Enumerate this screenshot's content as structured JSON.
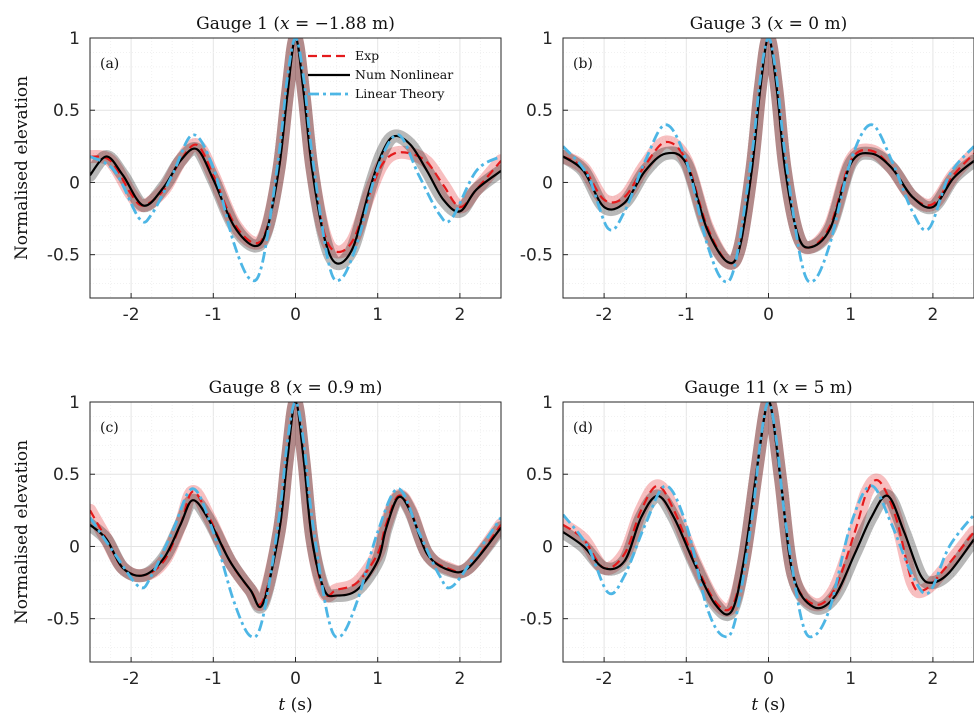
{
  "chart_data": [
    {
      "panel": "(a)",
      "type": "line",
      "title": "Gauge 1 (x = −1.88 m)",
      "title_parts": {
        "pre": "Gauge 1 (",
        "var": "x",
        "post": " = −1.88 m)"
      },
      "xlabel": "",
      "ylabel": "Normalised elevation",
      "xlim": [
        -2.5,
        2.5
      ],
      "ylim": [
        -0.8,
        1
      ],
      "xticks": [
        "-2",
        "-1",
        "0",
        "1",
        "2"
      ],
      "yticks": [
        "-0.5",
        "0",
        "0.5",
        "1"
      ],
      "grid": true,
      "legend": "top-center",
      "series": [
        {
          "name": "Exp",
          "color": "#e41a1c",
          "style": "dashed",
          "band": true,
          "x": [
            -2.5,
            -2.25,
            -2.0,
            -1.85,
            -1.6,
            -1.4,
            -1.2,
            -1.0,
            -0.75,
            -0.5,
            -0.35,
            -0.2,
            -0.1,
            0.0,
            0.1,
            0.2,
            0.35,
            0.5,
            0.7,
            0.9,
            1.05,
            1.2,
            1.4,
            1.6,
            1.8,
            2.0,
            2.2,
            2.5
          ],
          "y": [
            0.18,
            0.15,
            -0.08,
            -0.16,
            -0.05,
            0.15,
            0.26,
            0.05,
            -0.28,
            -0.42,
            -0.32,
            0.1,
            0.6,
            1.0,
            0.62,
            0.1,
            -0.35,
            -0.48,
            -0.4,
            -0.08,
            0.12,
            0.2,
            0.2,
            0.14,
            -0.02,
            -0.17,
            -0.05,
            0.15
          ]
        },
        {
          "name": "Num Nonlinear",
          "color": "#000000",
          "style": "solid",
          "band": true,
          "x": [
            -2.5,
            -2.3,
            -2.1,
            -1.85,
            -1.6,
            -1.4,
            -1.2,
            -1.0,
            -0.75,
            -0.5,
            -0.35,
            -0.2,
            -0.1,
            0.0,
            0.1,
            0.2,
            0.35,
            0.5,
            0.7,
            0.9,
            1.05,
            1.2,
            1.4,
            1.6,
            1.8,
            2.0,
            2.2,
            2.5
          ],
          "y": [
            0.05,
            0.18,
            0.05,
            -0.16,
            -0.03,
            0.15,
            0.23,
            0.02,
            -0.3,
            -0.44,
            -0.33,
            0.1,
            0.6,
            1.0,
            0.62,
            0.1,
            -0.38,
            -0.56,
            -0.45,
            -0.05,
            0.2,
            0.32,
            0.26,
            0.08,
            -0.12,
            -0.2,
            -0.05,
            0.08
          ]
        },
        {
          "name": "Linear Theory",
          "color": "#4db6e5",
          "style": "dashdot",
          "band": false,
          "x": [
            -2.5,
            -2.2,
            -1.9,
            -1.75,
            -1.5,
            -1.25,
            -1.0,
            -0.75,
            -0.55,
            -0.4,
            -0.2,
            -0.1,
            0.0,
            0.1,
            0.2,
            0.4,
            0.55,
            0.75,
            1.0,
            1.25,
            1.5,
            1.75,
            1.9,
            2.2,
            2.5
          ],
          "y": [
            0.18,
            0.08,
            -0.25,
            -0.22,
            0.05,
            0.33,
            0.1,
            -0.42,
            -0.67,
            -0.55,
            0.2,
            0.72,
            1.0,
            0.72,
            0.2,
            -0.55,
            -0.67,
            -0.42,
            0.1,
            0.33,
            0.05,
            -0.22,
            -0.25,
            0.08,
            0.18
          ]
        }
      ]
    },
    {
      "panel": "(b)",
      "type": "line",
      "title": "Gauge 3 (x = 0 m)",
      "title_parts": {
        "pre": "Gauge 3 (",
        "var": "x",
        "post": " = 0 m)"
      },
      "xlabel": "",
      "ylabel": "",
      "xlim": [
        -2.5,
        2.5
      ],
      "ylim": [
        -0.8,
        1
      ],
      "xticks": [
        "-2",
        "-1",
        "0",
        "1",
        "2"
      ],
      "yticks": [
        "-0.5",
        "0",
        "0.5",
        "1"
      ],
      "grid": true,
      "series": [
        {
          "name": "Exp",
          "color": "#e41a1c",
          "style": "dashed",
          "band": true,
          "x": [
            -2.5,
            -2.25,
            -2.0,
            -1.75,
            -1.5,
            -1.25,
            -1.0,
            -0.75,
            -0.5,
            -0.35,
            -0.2,
            -0.1,
            0.0,
            0.1,
            0.2,
            0.35,
            0.5,
            0.75,
            1.0,
            1.25,
            1.5,
            1.75,
            2.0,
            2.25,
            2.5
          ],
          "y": [
            0.18,
            0.1,
            -0.12,
            -0.1,
            0.12,
            0.28,
            0.15,
            -0.3,
            -0.55,
            -0.45,
            0.1,
            0.65,
            1.0,
            0.65,
            0.1,
            -0.35,
            -0.45,
            -0.3,
            0.15,
            0.22,
            0.1,
            -0.1,
            -0.15,
            0.05,
            0.2
          ]
        },
        {
          "name": "Num Nonlinear",
          "color": "#000000",
          "style": "solid",
          "band": true,
          "x": [
            -2.5,
            -2.25,
            -2.0,
            -1.75,
            -1.5,
            -1.25,
            -1.0,
            -0.75,
            -0.5,
            -0.35,
            -0.2,
            -0.1,
            0.0,
            0.1,
            0.2,
            0.35,
            0.5,
            0.75,
            1.0,
            1.25,
            1.5,
            1.75,
            2.0,
            2.25,
            2.5
          ],
          "y": [
            0.18,
            0.08,
            -0.17,
            -0.14,
            0.08,
            0.2,
            0.13,
            -0.32,
            -0.55,
            -0.45,
            0.1,
            0.65,
            1.0,
            0.65,
            0.1,
            -0.35,
            -0.45,
            -0.32,
            0.13,
            0.2,
            0.1,
            -0.1,
            -0.17,
            0.03,
            0.15
          ]
        },
        {
          "name": "Linear Theory",
          "color": "#4db6e5",
          "style": "dashdot",
          "band": false,
          "x": [
            -2.5,
            -2.2,
            -1.95,
            -1.75,
            -1.5,
            -1.25,
            -1.0,
            -0.75,
            -0.55,
            -0.4,
            -0.2,
            -0.1,
            0.0,
            0.1,
            0.2,
            0.4,
            0.55,
            0.75,
            1.0,
            1.25,
            1.5,
            1.75,
            1.95,
            2.2,
            2.5
          ],
          "y": [
            0.25,
            0.05,
            -0.32,
            -0.2,
            0.15,
            0.4,
            0.15,
            -0.42,
            -0.68,
            -0.55,
            0.2,
            0.72,
            1.0,
            0.72,
            0.2,
            -0.55,
            -0.68,
            -0.42,
            0.15,
            0.4,
            0.15,
            -0.2,
            -0.32,
            0.05,
            0.25
          ]
        }
      ]
    },
    {
      "panel": "(c)",
      "type": "line",
      "title": "Gauge 8 (x = 0.9 m)",
      "title_parts": {
        "pre": "Gauge 8 (",
        "var": "x",
        "post": " = 0.9 m)"
      },
      "xlabel": "t (s)",
      "ylabel": "Normalised elevation",
      "xlim": [
        -2.5,
        2.5
      ],
      "ylim": [
        -0.8,
        1
      ],
      "xticks": [
        "-2",
        "-1",
        "0",
        "1",
        "2"
      ],
      "yticks": [
        "-0.5",
        "0",
        "0.5",
        "1"
      ],
      "grid": true,
      "series": [
        {
          "name": "Exp",
          "color": "#e41a1c",
          "style": "dashed",
          "band": true,
          "x": [
            -2.5,
            -2.3,
            -2.1,
            -1.85,
            -1.6,
            -1.4,
            -1.25,
            -1.05,
            -0.8,
            -0.55,
            -0.4,
            -0.2,
            -0.1,
            0.0,
            0.1,
            0.2,
            0.35,
            0.5,
            0.75,
            1.0,
            1.1,
            1.25,
            1.4,
            1.6,
            1.85,
            2.1,
            2.5
          ],
          "y": [
            0.25,
            0.05,
            -0.15,
            -0.2,
            -0.1,
            0.15,
            0.38,
            0.2,
            -0.1,
            -0.3,
            -0.38,
            0.1,
            0.6,
            1.0,
            0.6,
            0.05,
            -0.32,
            -0.3,
            -0.25,
            -0.05,
            0.15,
            0.35,
            0.25,
            -0.05,
            -0.15,
            -0.15,
            0.15
          ]
        },
        {
          "name": "Num Nonlinear",
          "color": "#000000",
          "style": "solid",
          "band": true,
          "x": [
            -2.5,
            -2.3,
            -2.1,
            -1.85,
            -1.6,
            -1.4,
            -1.25,
            -1.05,
            -0.8,
            -0.55,
            -0.4,
            -0.2,
            -0.1,
            0.0,
            0.1,
            0.2,
            0.35,
            0.5,
            0.75,
            1.0,
            1.1,
            1.25,
            1.4,
            1.6,
            1.85,
            2.1,
            2.5
          ],
          "y": [
            0.15,
            0.05,
            -0.15,
            -0.2,
            -0.08,
            0.15,
            0.32,
            0.18,
            -0.1,
            -0.3,
            -0.4,
            0.1,
            0.6,
            1.0,
            0.6,
            0.05,
            -0.3,
            -0.34,
            -0.3,
            -0.1,
            0.12,
            0.34,
            0.24,
            -0.05,
            -0.16,
            -0.15,
            0.13
          ]
        },
        {
          "name": "Linear Theory",
          "color": "#4db6e5",
          "style": "dashdot",
          "band": false,
          "x": [
            -2.5,
            -2.2,
            -1.9,
            -1.75,
            -1.5,
            -1.25,
            -1.0,
            -0.75,
            -0.55,
            -0.4,
            -0.2,
            -0.1,
            0.0,
            0.1,
            0.2,
            0.4,
            0.55,
            0.75,
            1.0,
            1.25,
            1.5,
            1.75,
            1.9,
            2.2,
            2.5
          ],
          "y": [
            0.2,
            -0.05,
            -0.28,
            -0.2,
            0.1,
            0.4,
            0.1,
            -0.38,
            -0.62,
            -0.5,
            0.2,
            0.72,
            1.0,
            0.72,
            0.2,
            -0.5,
            -0.62,
            -0.38,
            0.1,
            0.4,
            0.1,
            -0.2,
            -0.28,
            -0.05,
            0.2
          ]
        }
      ]
    },
    {
      "panel": "(d)",
      "type": "line",
      "title": "Gauge 11 (x = 5 m)",
      "title_parts": {
        "pre": "Gauge 11 (",
        "var": "x",
        "post": " = 5 m)"
      },
      "xlabel": "t (s)",
      "ylabel": "",
      "xlim": [
        -2.5,
        2.5
      ],
      "ylim": [
        -0.8,
        1
      ],
      "xticks": [
        "-2",
        "-1",
        "0",
        "1",
        "2"
      ],
      "yticks": [
        "-0.5",
        "0",
        "0.5",
        "1"
      ],
      "grid": true,
      "series": [
        {
          "name": "Exp",
          "color": "#e41a1c",
          "style": "dashed",
          "band": true,
          "x": [
            -2.5,
            -2.25,
            -2.0,
            -1.75,
            -1.55,
            -1.35,
            -1.15,
            -0.9,
            -0.65,
            -0.45,
            -0.3,
            -0.15,
            -0.05,
            0.0,
            0.05,
            0.15,
            0.3,
            0.55,
            0.8,
            1.05,
            1.2,
            1.35,
            1.55,
            1.75,
            1.9,
            2.15,
            2.5
          ],
          "y": [
            0.15,
            0.05,
            -0.15,
            -0.05,
            0.25,
            0.42,
            0.25,
            -0.1,
            -0.38,
            -0.42,
            -0.1,
            0.5,
            0.9,
            1.0,
            0.9,
            0.45,
            -0.2,
            -0.4,
            -0.3,
            0.1,
            0.38,
            0.45,
            0.2,
            -0.25,
            -0.3,
            -0.15,
            0.1
          ]
        },
        {
          "name": "Num Nonlinear",
          "color": "#000000",
          "style": "solid",
          "band": true,
          "x": [
            -2.5,
            -2.25,
            -2.0,
            -1.75,
            -1.55,
            -1.35,
            -1.15,
            -0.9,
            -0.65,
            -0.45,
            -0.3,
            -0.15,
            -0.05,
            0.0,
            0.05,
            0.15,
            0.3,
            0.55,
            0.8,
            1.05,
            1.25,
            1.45,
            1.65,
            1.85,
            2.0,
            2.2,
            2.5
          ],
          "y": [
            0.1,
            0.0,
            -0.15,
            -0.1,
            0.2,
            0.35,
            0.2,
            -0.12,
            -0.4,
            -0.45,
            -0.1,
            0.5,
            0.9,
            1.0,
            0.9,
            0.45,
            -0.2,
            -0.42,
            -0.35,
            -0.05,
            0.2,
            0.35,
            0.1,
            -0.2,
            -0.25,
            -0.18,
            0.05
          ]
        },
        {
          "name": "Linear Theory",
          "color": "#4db6e5",
          "style": "dashdot",
          "band": false,
          "x": [
            -2.5,
            -2.2,
            -1.95,
            -1.75,
            -1.5,
            -1.25,
            -1.0,
            -0.75,
            -0.55,
            -0.4,
            -0.2,
            -0.1,
            0.0,
            0.1,
            0.2,
            0.4,
            0.55,
            0.75,
            1.0,
            1.25,
            1.5,
            1.75,
            1.95,
            2.2,
            2.5
          ],
          "y": [
            0.22,
            0.0,
            -0.32,
            -0.2,
            0.15,
            0.42,
            0.15,
            -0.42,
            -0.62,
            -0.5,
            0.2,
            0.72,
            1.0,
            0.72,
            0.2,
            -0.5,
            -0.62,
            -0.42,
            0.15,
            0.42,
            0.15,
            -0.2,
            -0.32,
            0.0,
            0.22
          ]
        }
      ]
    }
  ]
}
